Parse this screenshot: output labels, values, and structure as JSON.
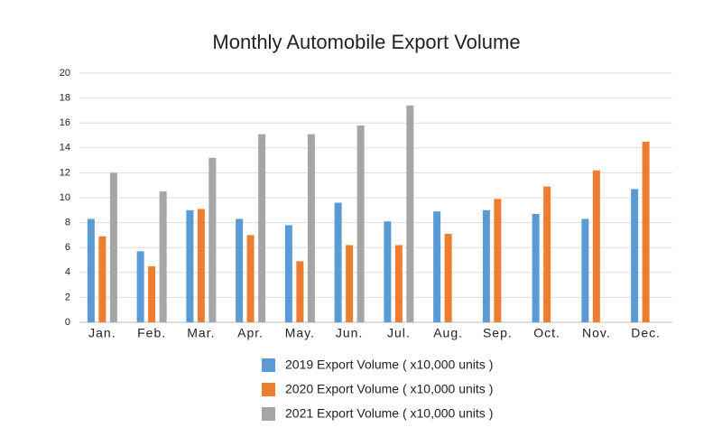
{
  "chart_data": {
    "type": "bar",
    "title": "Monthly Automobile Export Volume",
    "categories": [
      "Jan.",
      "Feb.",
      "Mar.",
      "Apr.",
      "May.",
      "Jun.",
      "Jul.",
      "Aug.",
      "Sep.",
      "Oct.",
      "Nov.",
      "Dec."
    ],
    "series": [
      {
        "name": "2019 Export Volume ( x10,000 units )",
        "color": "#5b9bd5",
        "values": [
          8.3,
          5.7,
          9.0,
          8.3,
          7.8,
          9.6,
          8.1,
          8.9,
          9.0,
          8.7,
          8.3,
          10.7
        ]
      },
      {
        "name": "2020 Export Volume ( x10,000 units )",
        "color": "#ed7d31",
        "values": [
          6.9,
          4.5,
          9.1,
          7.0,
          4.9,
          6.2,
          6.2,
          7.1,
          9.9,
          10.9,
          12.2,
          14.5
        ]
      },
      {
        "name": "2021 Export Volume ( x10,000 units )",
        "color": "#a5a5a5",
        "values": [
          12.0,
          10.5,
          13.2,
          15.1,
          15.1,
          15.8,
          17.4,
          null,
          null,
          null,
          null,
          null
        ]
      }
    ],
    "ylim": [
      0,
      20
    ],
    "yticks": [
      0,
      2,
      4,
      6,
      8,
      10,
      12,
      14,
      16,
      18,
      20
    ],
    "grid": true
  }
}
